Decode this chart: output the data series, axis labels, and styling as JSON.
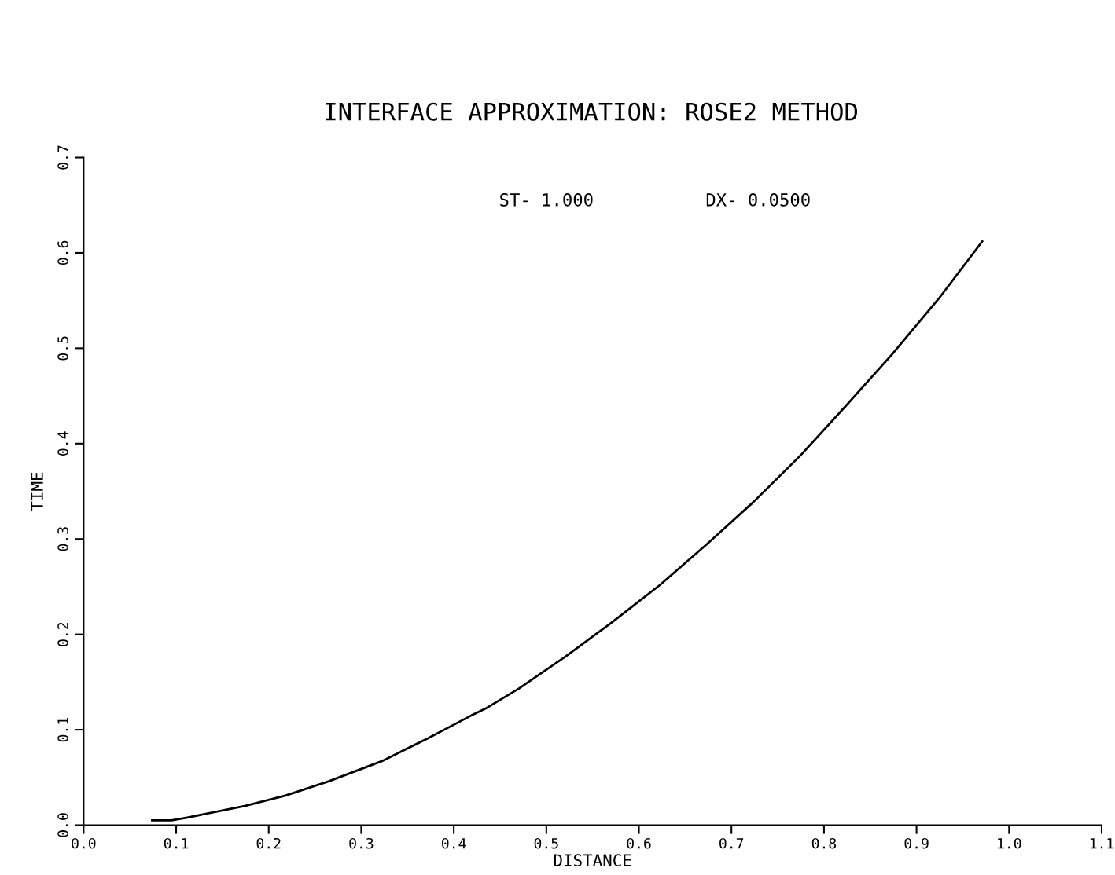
{
  "chart_data": {
    "type": "line",
    "title": "INTERFACE APPROXIMATION: ROSE2 METHOD",
    "xlabel": "DISTANCE",
    "ylabel": "TIME",
    "annotations": [
      "ST- 1.000",
      "DX- 0.0500"
    ],
    "series": [
      {
        "color": "#000000",
        "x": [
          0.074,
          0.095,
          0.112,
          0.174,
          0.218,
          0.265,
          0.322,
          0.372,
          0.419,
          0.434,
          0.47,
          0.521,
          0.57,
          0.623,
          0.674,
          0.724,
          0.775,
          0.824,
          0.873,
          0.924,
          0.971
        ],
        "values": [
          0.005,
          0.005,
          0.008,
          0.02,
          0.031,
          0.046,
          0.067,
          0.091,
          0.115,
          0.122,
          0.143,
          0.177,
          0.212,
          0.252,
          0.295,
          0.339,
          0.388,
          0.44,
          0.493,
          0.552,
          0.612
        ]
      }
    ],
    "xlim": [
      0.0,
      1.1
    ],
    "ylim": [
      0.0,
      0.7
    ],
    "xticks": [
      {
        "value": 0.0,
        "label": "0.0"
      },
      0.1,
      0.2,
      0.3,
      0.4,
      0.5,
      0.6,
      0.7,
      0.8,
      0.9,
      {
        "value": 1.0,
        "label": "1.0"
      },
      1.1
    ],
    "yticks": [
      {
        "value": 0.0,
        "label": "0.0"
      },
      0.1,
      0.2,
      0.3,
      0.4,
      0.5,
      0.6,
      0.7
    ],
    "grid": false,
    "legend": false,
    "marker": "none",
    "line_style": "solid"
  }
}
